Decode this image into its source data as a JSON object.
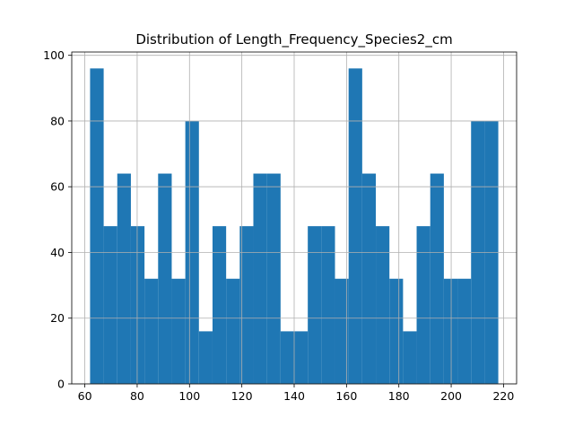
{
  "chart_data": {
    "type": "bar",
    "title": "Distribution of Length_Frequency_Species2_cm",
    "xlabel": "",
    "ylabel": "",
    "xlim": [
      55,
      225
    ],
    "ylim": [
      0,
      101
    ],
    "grid": true,
    "bar_color": "#1f77b4",
    "bin_edges": [
      62,
      67.2,
      72.4,
      77.6,
      82.8,
      88,
      93.2,
      98.4,
      103.6,
      108.8,
      114,
      119.2,
      124.4,
      129.6,
      134.8,
      140,
      145.2,
      150.4,
      155.6,
      160.8,
      166,
      171.2,
      176.4,
      181.6,
      186.8,
      192,
      197.2,
      202.4,
      207.6,
      212.8,
      218
    ],
    "values": [
      96,
      48,
      64,
      48,
      32,
      64,
      32,
      80,
      16,
      48,
      32,
      48,
      64,
      64,
      16,
      16,
      48,
      48,
      32,
      96,
      64,
      48,
      32,
      16,
      48,
      64,
      32,
      32,
      80,
      80
    ],
    "x_ticks": [
      60,
      80,
      100,
      120,
      140,
      160,
      180,
      200,
      220
    ],
    "y_ticks": [
      0,
      20,
      40,
      60,
      80,
      100
    ]
  }
}
